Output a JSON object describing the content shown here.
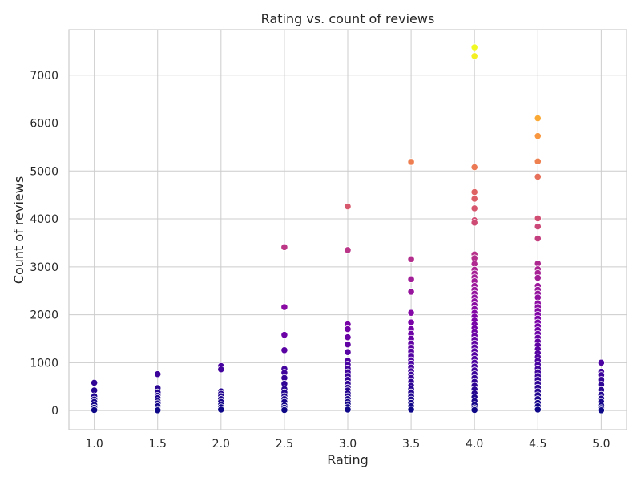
{
  "chart_data": {
    "type": "scatter",
    "title": "Rating vs. count of reviews",
    "xlabel": "Rating",
    "ylabel": "Count of reviews",
    "xlim": [
      0.8,
      5.2
    ],
    "ylim": [
      -400,
      7950
    ],
    "x_ticks": [
      1.0,
      1.5,
      2.0,
      2.5,
      3.0,
      3.5,
      4.0,
      4.5,
      5.0
    ],
    "x_tick_labels": [
      "1.0",
      "1.5",
      "2.0",
      "2.5",
      "3.0",
      "3.5",
      "4.0",
      "4.5",
      "5.0"
    ],
    "y_ticks": [
      0,
      1000,
      2000,
      3000,
      4000,
      5000,
      6000,
      7000
    ],
    "y_tick_labels": [
      "0",
      "1000",
      "2000",
      "3000",
      "4000",
      "5000",
      "6000",
      "7000"
    ],
    "grid": true,
    "colormap": "plasma",
    "hue_range": [
      0,
      7580
    ],
    "points": [
      [
        1.0,
        580
      ],
      [
        1.0,
        420
      ],
      [
        1.0,
        300
      ],
      [
        1.0,
        230
      ],
      [
        1.0,
        180
      ],
      [
        1.0,
        120
      ],
      [
        1.0,
        60
      ],
      [
        1.0,
        10
      ],
      [
        1.5,
        760
      ],
      [
        1.5,
        470
      ],
      [
        1.5,
        380
      ],
      [
        1.5,
        310
      ],
      [
        1.5,
        260
      ],
      [
        1.5,
        200
      ],
      [
        1.5,
        150
      ],
      [
        1.5,
        90
      ],
      [
        1.5,
        30
      ],
      [
        1.5,
        5
      ],
      [
        2.0,
        930
      ],
      [
        2.0,
        860
      ],
      [
        2.0,
        400
      ],
      [
        2.0,
        350
      ],
      [
        2.0,
        300
      ],
      [
        2.0,
        240
      ],
      [
        2.0,
        180
      ],
      [
        2.0,
        120
      ],
      [
        2.0,
        70
      ],
      [
        2.0,
        20
      ],
      [
        2.5,
        3410
      ],
      [
        2.5,
        2160
      ],
      [
        2.5,
        1580
      ],
      [
        2.5,
        1260
      ],
      [
        2.5,
        870
      ],
      [
        2.5,
        790
      ],
      [
        2.5,
        680
      ],
      [
        2.5,
        560
      ],
      [
        2.5,
        450
      ],
      [
        2.5,
        380
      ],
      [
        2.5,
        300
      ],
      [
        2.5,
        240
      ],
      [
        2.5,
        180
      ],
      [
        2.5,
        110
      ],
      [
        2.5,
        60
      ],
      [
        2.5,
        10
      ],
      [
        3.0,
        4260
      ],
      [
        3.0,
        3350
      ],
      [
        3.0,
        1800
      ],
      [
        3.0,
        1700
      ],
      [
        3.0,
        1530
      ],
      [
        3.0,
        1380
      ],
      [
        3.0,
        1220
      ],
      [
        3.0,
        1040
      ],
      [
        3.0,
        960
      ],
      [
        3.0,
        880
      ],
      [
        3.0,
        800
      ],
      [
        3.0,
        720
      ],
      [
        3.0,
        640
      ],
      [
        3.0,
        560
      ],
      [
        3.0,
        480
      ],
      [
        3.0,
        420
      ],
      [
        3.0,
        360
      ],
      [
        3.0,
        300
      ],
      [
        3.0,
        240
      ],
      [
        3.0,
        180
      ],
      [
        3.0,
        130
      ],
      [
        3.0,
        70
      ],
      [
        3.0,
        20
      ],
      [
        3.5,
        5190
      ],
      [
        3.5,
        3160
      ],
      [
        3.5,
        2740
      ],
      [
        3.5,
        2480
      ],
      [
        3.5,
        2040
      ],
      [
        3.5,
        1840
      ],
      [
        3.5,
        1700
      ],
      [
        3.5,
        1600
      ],
      [
        3.5,
        1500
      ],
      [
        3.5,
        1400
      ],
      [
        3.5,
        1310
      ],
      [
        3.5,
        1230
      ],
      [
        3.5,
        1140
      ],
      [
        3.5,
        1050
      ],
      [
        3.5,
        980
      ],
      [
        3.5,
        900
      ],
      [
        3.5,
        820
      ],
      [
        3.5,
        750
      ],
      [
        3.5,
        680
      ],
      [
        3.5,
        600
      ],
      [
        3.5,
        520
      ],
      [
        3.5,
        450
      ],
      [
        3.5,
        380
      ],
      [
        3.5,
        300
      ],
      [
        3.5,
        230
      ],
      [
        3.5,
        160
      ],
      [
        3.5,
        90
      ],
      [
        3.5,
        20
      ],
      [
        4.0,
        7580
      ],
      [
        4.0,
        7400
      ],
      [
        4.0,
        5080
      ],
      [
        4.0,
        4560
      ],
      [
        4.0,
        4420
      ],
      [
        4.0,
        4220
      ],
      [
        4.0,
        3970
      ],
      [
        4.0,
        3920
      ],
      [
        4.0,
        3260
      ],
      [
        4.0,
        3180
      ],
      [
        4.0,
        3060
      ],
      [
        4.0,
        2940
      ],
      [
        4.0,
        2860
      ],
      [
        4.0,
        2780
      ],
      [
        4.0,
        2700
      ],
      [
        4.0,
        2600
      ],
      [
        4.0,
        2520
      ],
      [
        4.0,
        2440
      ],
      [
        4.0,
        2360
      ],
      [
        4.0,
        2280
      ],
      [
        4.0,
        2200
      ],
      [
        4.0,
        2120
      ],
      [
        4.0,
        2040
      ],
      [
        4.0,
        1960
      ],
      [
        4.0,
        1880
      ],
      [
        4.0,
        1800
      ],
      [
        4.0,
        1720
      ],
      [
        4.0,
        1640
      ],
      [
        4.0,
        1560
      ],
      [
        4.0,
        1480
      ],
      [
        4.0,
        1400
      ],
      [
        4.0,
        1320
      ],
      [
        4.0,
        1240
      ],
      [
        4.0,
        1160
      ],
      [
        4.0,
        1080
      ],
      [
        4.0,
        1000
      ],
      [
        4.0,
        920
      ],
      [
        4.0,
        840
      ],
      [
        4.0,
        760
      ],
      [
        4.0,
        680
      ],
      [
        4.0,
        600
      ],
      [
        4.0,
        520
      ],
      [
        4.0,
        440
      ],
      [
        4.0,
        360
      ],
      [
        4.0,
        280
      ],
      [
        4.0,
        200
      ],
      [
        4.0,
        120
      ],
      [
        4.0,
        50
      ],
      [
        4.0,
        10
      ],
      [
        4.5,
        6100
      ],
      [
        4.5,
        5730
      ],
      [
        4.5,
        5200
      ],
      [
        4.5,
        4880
      ],
      [
        4.5,
        4010
      ],
      [
        4.5,
        3840
      ],
      [
        4.5,
        3590
      ],
      [
        4.5,
        3070
      ],
      [
        4.5,
        2950
      ],
      [
        4.5,
        2870
      ],
      [
        4.5,
        2770
      ],
      [
        4.5,
        2600
      ],
      [
        4.5,
        2520
      ],
      [
        4.5,
        2440
      ],
      [
        4.5,
        2360
      ],
      [
        4.5,
        2240
      ],
      [
        4.5,
        2160
      ],
      [
        4.5,
        2080
      ],
      [
        4.5,
        2000
      ],
      [
        4.5,
        1920
      ],
      [
        4.5,
        1840
      ],
      [
        4.5,
        1760
      ],
      [
        4.5,
        1680
      ],
      [
        4.5,
        1600
      ],
      [
        4.5,
        1520
      ],
      [
        4.5,
        1440
      ],
      [
        4.5,
        1360
      ],
      [
        4.5,
        1280
      ],
      [
        4.5,
        1200
      ],
      [
        4.5,
        1120
      ],
      [
        4.5,
        1040
      ],
      [
        4.5,
        960
      ],
      [
        4.5,
        880
      ],
      [
        4.5,
        800
      ],
      [
        4.5,
        720
      ],
      [
        4.5,
        640
      ],
      [
        4.5,
        560
      ],
      [
        4.5,
        480
      ],
      [
        4.5,
        400
      ],
      [
        4.5,
        320
      ],
      [
        4.5,
        240
      ],
      [
        4.5,
        160
      ],
      [
        4.5,
        90
      ],
      [
        4.5,
        20
      ],
      [
        5.0,
        1000
      ],
      [
        5.0,
        810
      ],
      [
        5.0,
        740
      ],
      [
        5.0,
        640
      ],
      [
        5.0,
        540
      ],
      [
        5.0,
        430
      ],
      [
        5.0,
        330
      ],
      [
        5.0,
        250
      ],
      [
        5.0,
        180
      ],
      [
        5.0,
        110
      ],
      [
        5.0,
        50
      ],
      [
        5.0,
        5
      ]
    ]
  }
}
